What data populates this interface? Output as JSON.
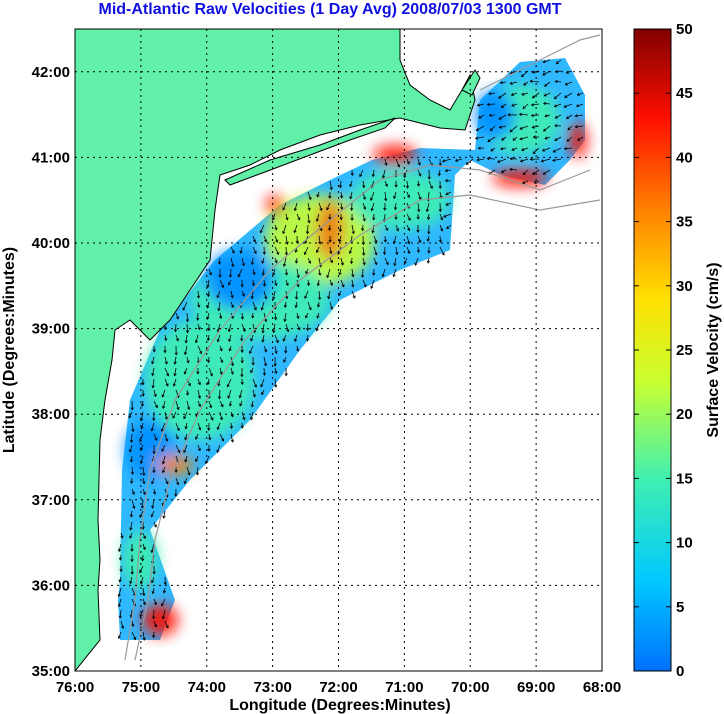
{
  "title": "Mid-Atlantic Raw Velocities (1 Day Avg) 2008/07/03 1300 GMT",
  "axes": {
    "xlabel": "Longitude (Degrees:Minutes)",
    "ylabel": "Latitude (Degrees:Minutes)",
    "x_ticks": [
      "76:00",
      "75:00",
      "74:00",
      "73:00",
      "72:00",
      "71:00",
      "70:00",
      "69:00",
      "68:00"
    ],
    "y_ticks": [
      "35:00",
      "36:00",
      "37:00",
      "38:00",
      "39:00",
      "40:00",
      "41:00",
      "42:00"
    ],
    "lon_range": [
      -76,
      -68
    ],
    "lat_range": [
      35,
      42.5
    ]
  },
  "colorbar": {
    "label": "Surface Velocity (cm/s)",
    "ticks": [
      "0",
      "5",
      "10",
      "15",
      "20",
      "25",
      "30",
      "35",
      "40",
      "45",
      "50"
    ],
    "range": [
      0,
      50
    ],
    "colors": [
      "#0070ff",
      "#00c8ff",
      "#40f0b0",
      "#c8ff30",
      "#ffe000",
      "#ff8000",
      "#ff1000",
      "#800000"
    ]
  },
  "colors": {
    "land": "#60f0a8",
    "ocean": "#ffffff",
    "title": "#1010e0"
  }
}
